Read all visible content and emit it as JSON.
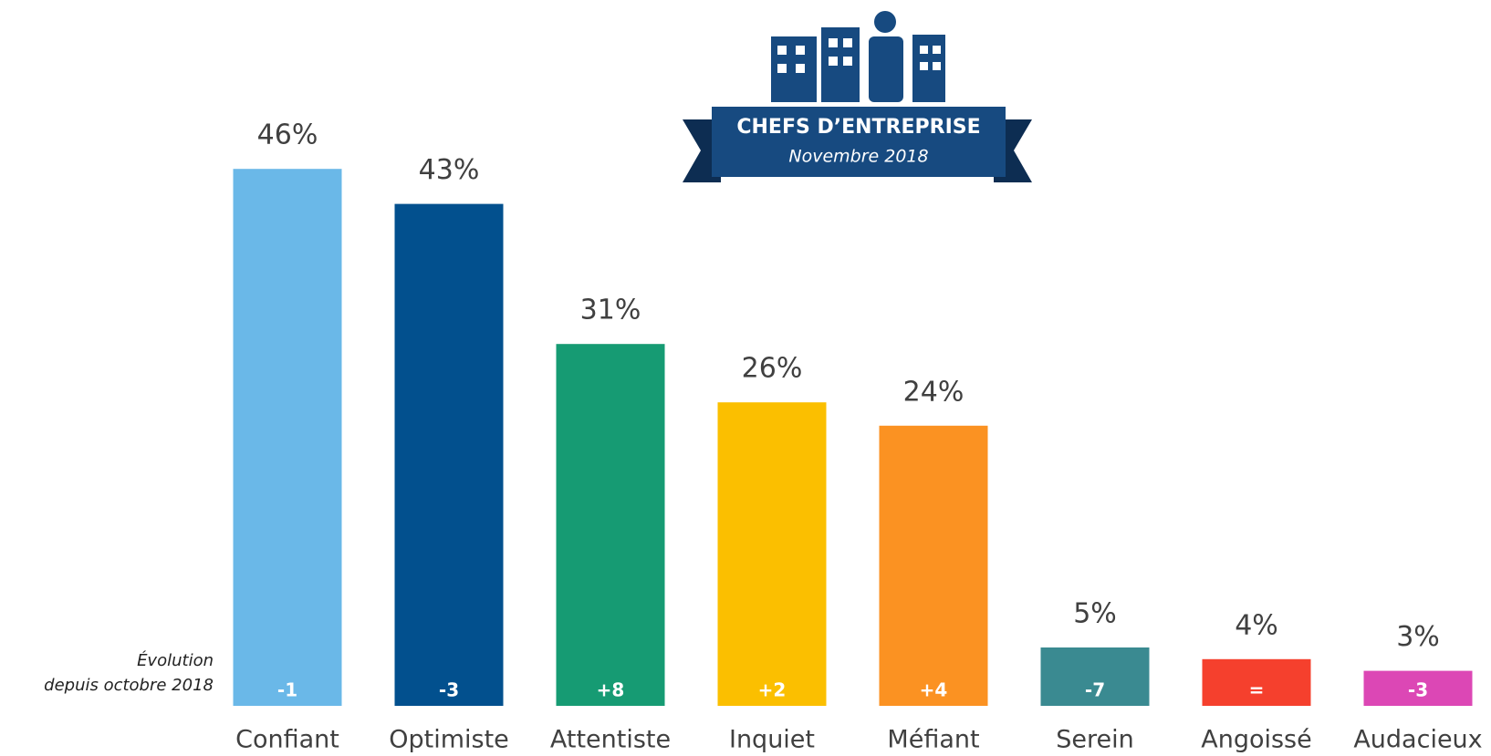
{
  "chart_data": {
    "type": "bar",
    "title": "CHEFS D’ENTREPRISE",
    "subtitle": "Novembre 2018",
    "annotation": [
      "Évolution",
      "depuis octobre 2018"
    ],
    "categories": [
      "Confiant",
      "Optimiste",
      "Attentiste",
      "Inquiet",
      "Méfiant",
      "Serein",
      "Angoissé",
      "Audacieux"
    ],
    "values": [
      46,
      43,
      31,
      26,
      24,
      5,
      4,
      3
    ],
    "value_labels": [
      "46%",
      "43%",
      "31%",
      "26%",
      "24%",
      "5%",
      "4%",
      "3%"
    ],
    "evolution": [
      "-1",
      "-3",
      "+8",
      "+2",
      "+4",
      "-7",
      "=",
      "-3"
    ],
    "colors": [
      "#6ab8e8",
      "#02508e",
      "#169b73",
      "#fbbf00",
      "#fb9222",
      "#3a8a91",
      "#f5402d",
      "#dc47b5"
    ]
  }
}
